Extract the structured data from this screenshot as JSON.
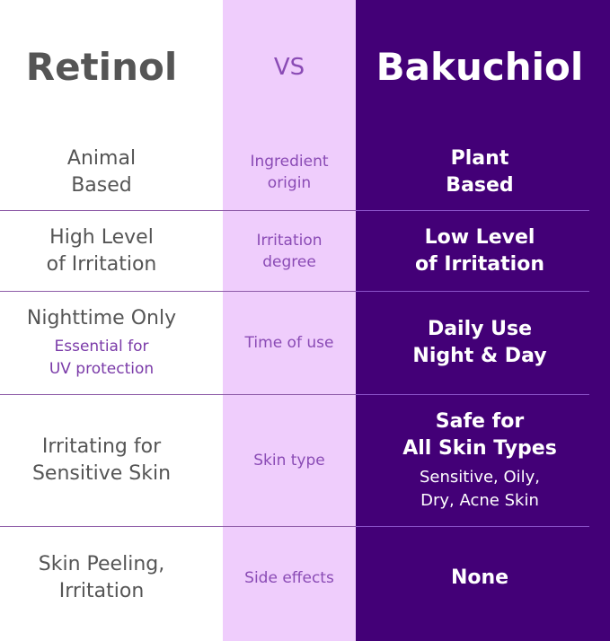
{
  "colors": {
    "left_bg": "#ffffff",
    "middle_bg": "#efcdfc",
    "right_bg": "#430077",
    "middle_text": "#8a4bb5",
    "left_text": "#555555"
  },
  "header": {
    "left": "Retinol",
    "middle": "VS",
    "right": "Bakuchiol"
  },
  "rows": [
    {
      "left": [
        "Animal",
        "Based"
      ],
      "left_sub": [],
      "middle": [
        "Ingredient",
        "origin"
      ],
      "right": [
        "Plant",
        "Based"
      ],
      "right_sub": []
    },
    {
      "left": [
        "High Level",
        "of Irritation"
      ],
      "left_sub": [],
      "middle": [
        "Irritation",
        "degree"
      ],
      "right": [
        "Low Level",
        "of Irritation"
      ],
      "right_sub": []
    },
    {
      "left": [
        "Nighttime Only"
      ],
      "left_sub": [
        "Essential for",
        "UV protection"
      ],
      "middle": [
        "Time of use"
      ],
      "right": [
        "Daily Use",
        "Night & Day"
      ],
      "right_sub": []
    },
    {
      "left": [
        "Irritating for",
        "Sensitive Skin"
      ],
      "left_sub": [],
      "middle": [
        "Skin type"
      ],
      "right": [
        "Safe for",
        "All Skin Types"
      ],
      "right_sub": [
        "Sensitive, Oily,",
        "Dry, Acne Skin"
      ]
    },
    {
      "left": [
        "Skin Peeling,",
        "Irritation"
      ],
      "left_sub": [],
      "middle": [
        "Side effects"
      ],
      "right": [
        "None"
      ],
      "right_sub": []
    }
  ]
}
